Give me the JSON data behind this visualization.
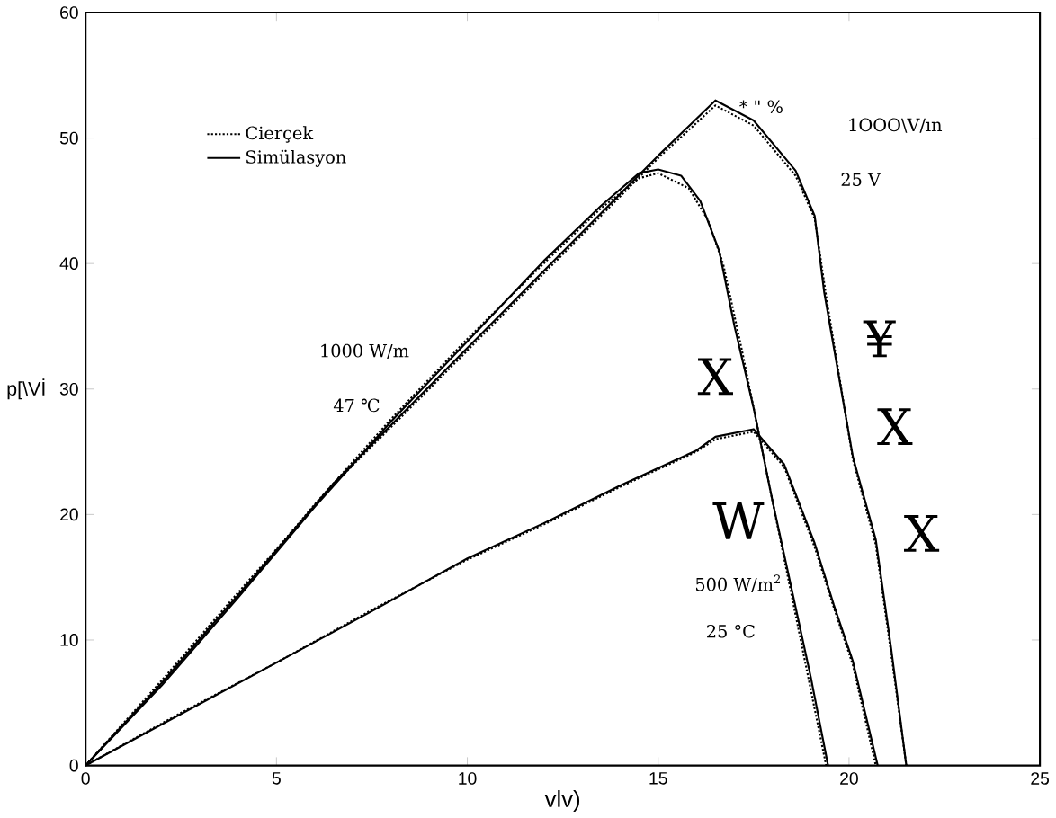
{
  "chart_data": {
    "type": "line",
    "xlabel": "vlv)",
    "ylabel": "p[\\Vİ",
    "xlim": [
      0,
      25
    ],
    "ylim": [
      0,
      60
    ],
    "xticks": [
      0,
      5,
      10,
      15,
      20,
      25
    ],
    "yticks": [
      0,
      10,
      20,
      30,
      40,
      50,
      60
    ],
    "grid": false,
    "legend": "top left",
    "series": [
      {
        "name": "Cierçek",
        "color": "#000000",
        "line_style": "dotted",
        "x": [
          0,
          2,
          4,
          6,
          8,
          10,
          12,
          13.5,
          14.5,
          15,
          15.8,
          16.3,
          16.7,
          17.2,
          17.8,
          18.4,
          19,
          19.4
        ],
        "values": [
          0,
          6.6,
          13.6,
          20.8,
          27.6,
          34,
          40,
          44.4,
          46.8,
          47.2,
          46,
          43.5,
          40,
          33,
          24,
          15,
          6,
          0
        ]
      },
      {
        "color": "#000000",
        "line_style": "dotted",
        "x": [
          0,
          2,
          4,
          6.5,
          9,
          12,
          15,
          16.5,
          17.5,
          18.6,
          19.1,
          19.4,
          20.1,
          20.7,
          21.1,
          21.5
        ],
        "values": [
          0,
          6.8,
          13.8,
          22.4,
          30,
          39.2,
          48.4,
          52.6,
          51,
          47,
          43.6,
          37.4,
          24.4,
          17.6,
          9,
          0
        ]
      },
      {
        "color": "#000000",
        "line_style": "dotted",
        "x": [
          0,
          2.5,
          5,
          7.5,
          10,
          12,
          14,
          16,
          16.5,
          17.5,
          18.3,
          19.1,
          19.6,
          20.1,
          20.7
        ],
        "values": [
          0,
          4.2,
          8.2,
          12.4,
          16.4,
          19.2,
          22.2,
          25,
          26,
          26.6,
          23.8,
          17.4,
          12.6,
          8,
          0
        ]
      },
      {
        "name": "Simülasyon",
        "color": "#000000",
        "line_style": "solid",
        "x": [
          0,
          2,
          4,
          6,
          8,
          10,
          12,
          13.5,
          14.5,
          15,
          15.6,
          16.1,
          16.6,
          17,
          17.5,
          18,
          18.4,
          19,
          19.45
        ],
        "values": [
          0,
          6.4,
          13.4,
          20.6,
          27.4,
          33.8,
          40.2,
          44.6,
          47.2,
          47.5,
          47,
          45,
          41,
          35,
          28.5,
          21,
          15.4,
          7,
          0
        ]
      },
      {
        "color": "#000000",
        "line_style": "solid",
        "x": [
          0,
          2,
          4,
          6.5,
          9,
          12,
          15,
          16.5,
          17.5,
          18.6,
          19.1,
          19.35,
          20.1,
          20.7,
          21.1,
          21.5
        ],
        "values": [
          0,
          6.6,
          13.6,
          22.5,
          30.2,
          39.4,
          48.6,
          53,
          51.4,
          47.4,
          43.8,
          37.7,
          24.6,
          18,
          9.4,
          0
        ]
      },
      {
        "color": "#000000",
        "line_style": "solid",
        "x": [
          0,
          2.5,
          5,
          7.5,
          10,
          12,
          14,
          16,
          16.5,
          17.5,
          18.3,
          19.1,
          19.6,
          20.1,
          20.75
        ],
        "values": [
          0,
          4.1,
          8.2,
          12.3,
          16.5,
          19.3,
          22.3,
          25.1,
          26.2,
          26.8,
          24,
          17.7,
          12.8,
          8.3,
          0
        ]
      }
    ],
    "annotations": [
      "1000 W/m",
      "47 ℃",
      "1OOO\\V/ın",
      "25 V",
      "500 W/m$^{2}$",
      "25 °C",
      "* \" %",
      "¥",
      "X",
      "X",
      "W",
      "X"
    ]
  }
}
